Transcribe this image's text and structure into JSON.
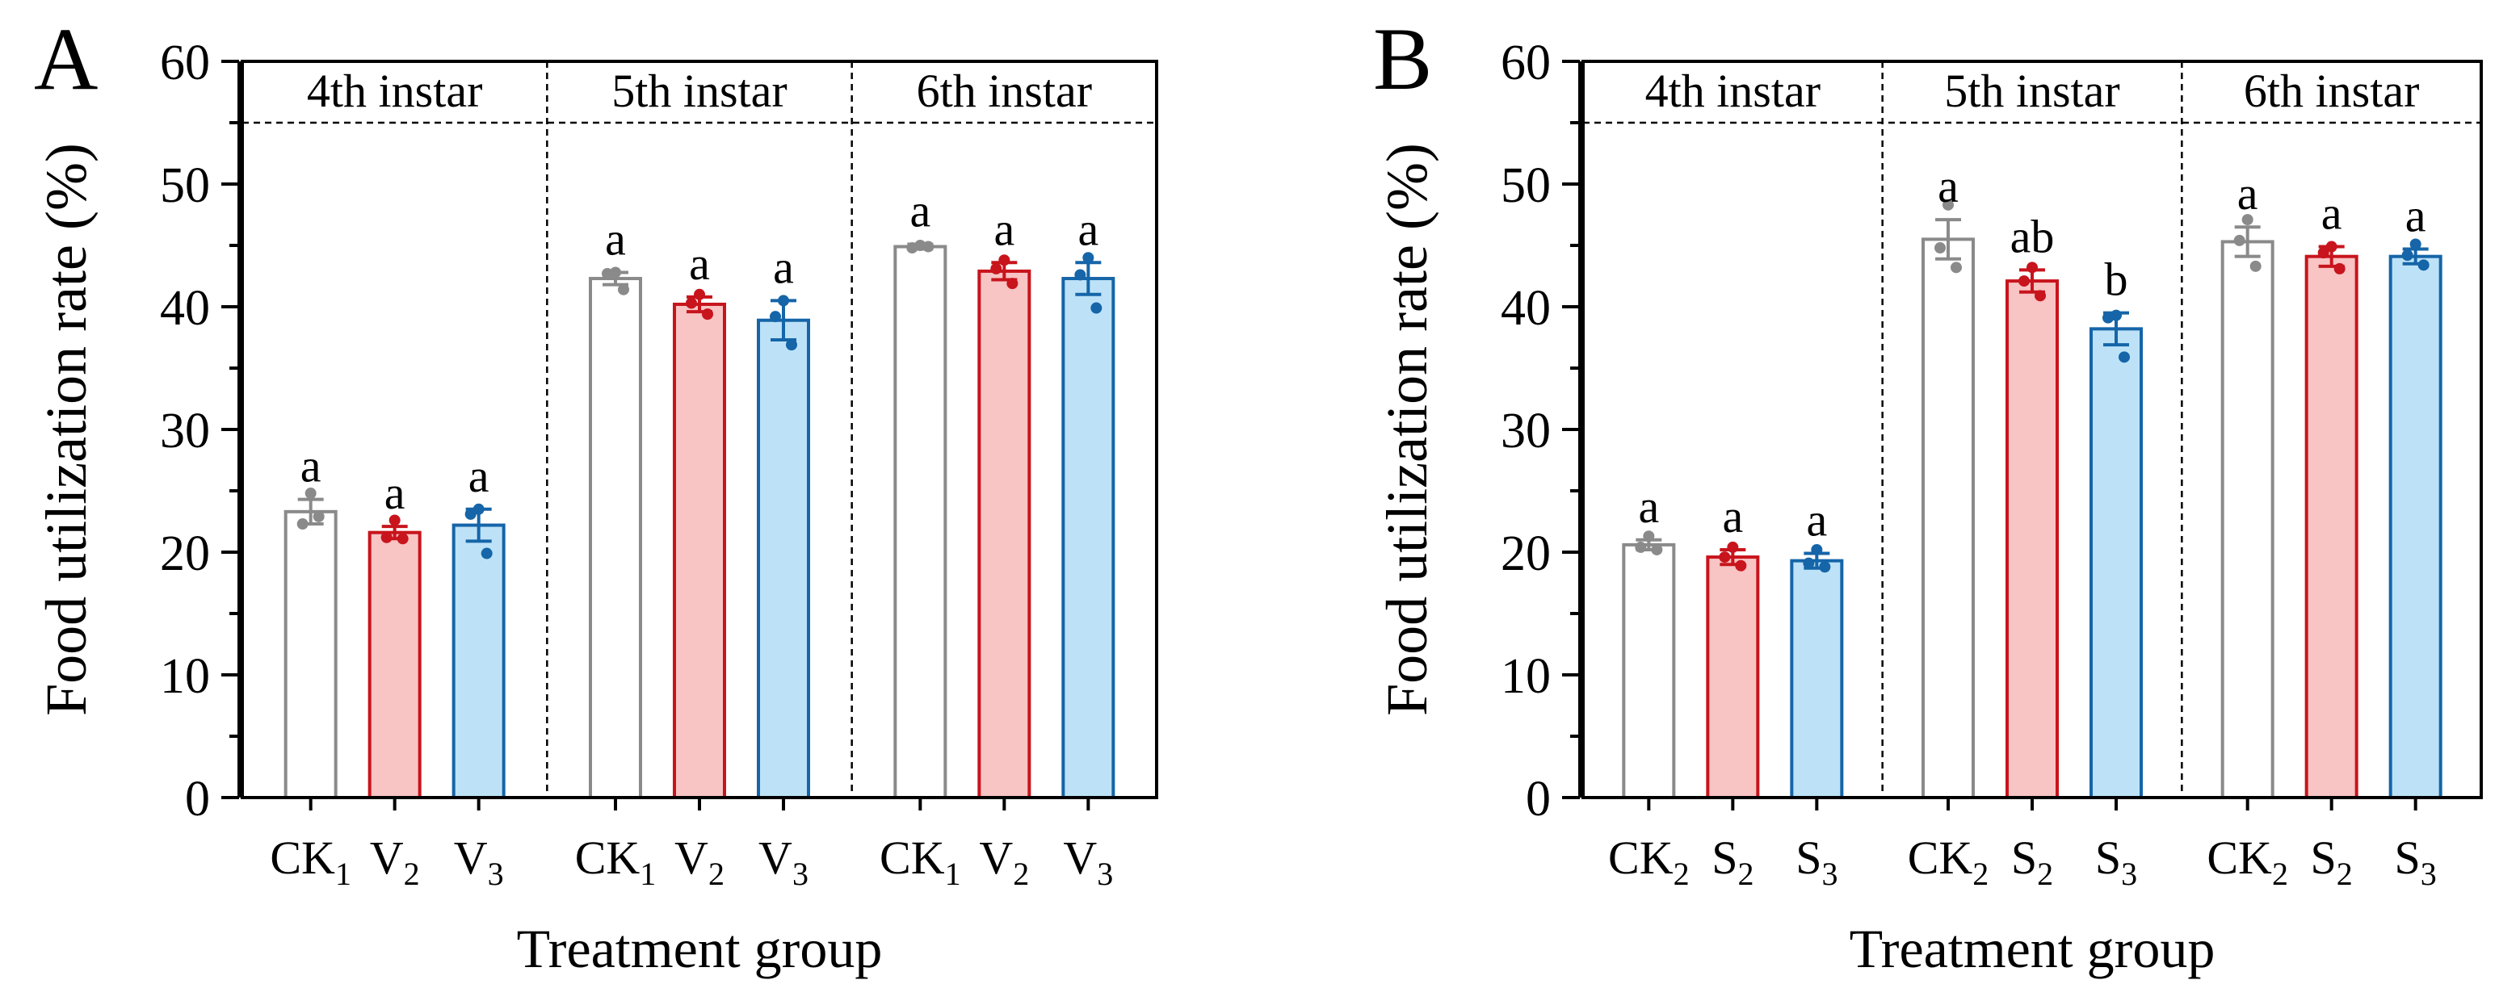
{
  "chart_data": [
    {
      "panel_label": "A",
      "type": "bar",
      "ylabel": "Food utilization rate (%)",
      "xlabel": "Treatment group",
      "ylim": [
        0,
        60
      ],
      "yticks": [
        "0",
        "10",
        "20",
        "30",
        "40",
        "50",
        "60"
      ],
      "groups": [
        {
          "label": "4th instar",
          "bars": [
            {
              "name": "CK",
              "sub": "1",
              "mean": 23.3,
              "sem": 1.0,
              "points": [
                24.8,
                22.3,
                22.9
              ],
              "letter": "a",
              "color": "white"
            },
            {
              "name": "V",
              "sub": "2",
              "mean": 21.6,
              "sem": 0.5,
              "points": [
                22.6,
                21.2,
                21.1
              ],
              "letter": "a",
              "color": "red"
            },
            {
              "name": "V",
              "sub": "3",
              "mean": 22.2,
              "sem": 1.3,
              "points": [
                23.5,
                23.1,
                19.9
              ],
              "letter": "a",
              "color": "blue"
            }
          ]
        },
        {
          "label": "5th instar",
          "bars": [
            {
              "name": "CK",
              "sub": "1",
              "mean": 42.3,
              "sem": 0.5,
              "points": [
                42.8,
                42.7,
                41.4
              ],
              "letter": "a",
              "color": "white"
            },
            {
              "name": "V",
              "sub": "2",
              "mean": 40.2,
              "sem": 0.6,
              "points": [
                41.0,
                40.3,
                39.4
              ],
              "letter": "a",
              "color": "red"
            },
            {
              "name": "V",
              "sub": "3",
              "mean": 38.9,
              "sem": 1.6,
              "points": [
                40.5,
                39.2,
                36.9
              ],
              "letter": "a",
              "color": "blue"
            }
          ]
        },
        {
          "label": "6th instar",
          "bars": [
            {
              "name": "CK",
              "sub": "1",
              "mean": 44.9,
              "sem": 0.2,
              "points": [
                45.0,
                44.8,
                44.9
              ],
              "letter": "a",
              "color": "white"
            },
            {
              "name": "V",
              "sub": "2",
              "mean": 42.9,
              "sem": 0.7,
              "points": [
                43.8,
                43.1,
                41.9
              ],
              "letter": "a",
              "color": "red"
            },
            {
              "name": "V",
              "sub": "3",
              "mean": 42.3,
              "sem": 1.3,
              "points": [
                44.0,
                42.6,
                39.9
              ],
              "letter": "a",
              "color": "blue"
            }
          ]
        }
      ]
    },
    {
      "panel_label": "B",
      "type": "bar",
      "ylabel": "Food utilization rate (%)",
      "xlabel": "Treatment group",
      "ylim": [
        0,
        60
      ],
      "yticks": [
        "0",
        "10",
        "20",
        "30",
        "40",
        "50",
        "60"
      ],
      "groups": [
        {
          "label": "4th instar",
          "bars": [
            {
              "name": "CK",
              "sub": "2",
              "mean": 20.6,
              "sem": 0.4,
              "points": [
                21.3,
                20.4,
                20.2
              ],
              "letter": "a",
              "color": "white"
            },
            {
              "name": "S",
              "sub": "2",
              "mean": 19.6,
              "sem": 0.6,
              "points": [
                20.4,
                19.6,
                18.9
              ],
              "letter": "a",
              "color": "red"
            },
            {
              "name": "S",
              "sub": "3",
              "mean": 19.3,
              "sem": 0.6,
              "points": [
                20.2,
                19.1,
                18.8
              ],
              "letter": "a",
              "color": "blue"
            }
          ]
        },
        {
          "label": "5th instar",
          "bars": [
            {
              "name": "CK",
              "sub": "2",
              "mean": 45.5,
              "sem": 1.6,
              "points": [
                48.3,
                44.8,
                43.2
              ],
              "letter": "a",
              "color": "white"
            },
            {
              "name": "S",
              "sub": "2",
              "mean": 42.1,
              "sem": 0.9,
              "points": [
                43.2,
                42.1,
                40.9
              ],
              "letter": "ab",
              "color": "red"
            },
            {
              "name": "S",
              "sub": "3",
              "mean": 38.2,
              "sem": 1.3,
              "points": [
                39.3,
                39.1,
                35.9
              ],
              "letter": "b",
              "color": "blue"
            }
          ]
        },
        {
          "label": "6th instar",
          "bars": [
            {
              "name": "CK",
              "sub": "2",
              "mean": 45.3,
              "sem": 1.2,
              "points": [
                47.1,
                45.4,
                43.3
              ],
              "letter": "a",
              "color": "white"
            },
            {
              "name": "S",
              "sub": "2",
              "mean": 44.1,
              "sem": 0.8,
              "points": [
                44.9,
                44.4,
                43.1
              ],
              "letter": "a",
              "color": "red"
            },
            {
              "name": "S",
              "sub": "3",
              "mean": 44.1,
              "sem": 0.6,
              "points": [
                45.1,
                44.2,
                43.4
              ],
              "letter": "a",
              "color": "blue"
            }
          ]
        }
      ]
    }
  ],
  "colors": {
    "white": {
      "fill": "#ffffff",
      "stroke": "#8a8a8a",
      "dot": "#8a8a8a"
    },
    "red": {
      "fill": "#f8c4c4",
      "stroke": "#c8141c",
      "dot": "#c8141c"
    },
    "blue": {
      "fill": "#bde2f8",
      "stroke": "#1565a8",
      "dot": "#1565a8"
    }
  }
}
